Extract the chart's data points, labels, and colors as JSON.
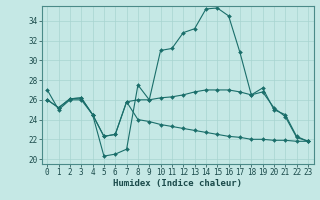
{
  "xlabel": "Humidex (Indice chaleur)",
  "bg_color": "#c5e8e5",
  "line_color": "#1a6e6a",
  "grid_color": "#a8d4d0",
  "xlim": [
    -0.5,
    23.5
  ],
  "ylim": [
    19.5,
    35.5
  ],
  "yticks": [
    20,
    22,
    24,
    26,
    28,
    30,
    32,
    34
  ],
  "xticks": [
    0,
    1,
    2,
    3,
    4,
    5,
    6,
    7,
    8,
    9,
    10,
    11,
    12,
    13,
    14,
    15,
    16,
    17,
    18,
    19,
    20,
    21,
    22,
    23
  ],
  "line1_x": [
    0,
    1,
    2,
    3,
    4,
    5,
    6,
    7,
    8,
    9,
    10,
    11,
    12,
    13,
    14,
    15,
    16,
    17,
    18,
    19,
    20,
    21,
    22,
    23
  ],
  "line1_y": [
    27.0,
    25.0,
    26.0,
    26.0,
    24.5,
    20.3,
    20.5,
    21.0,
    27.5,
    26.0,
    31.0,
    31.2,
    32.8,
    33.2,
    35.2,
    35.3,
    34.5,
    30.8,
    26.5,
    26.8,
    25.2,
    24.3,
    22.2,
    21.8
  ],
  "line2_x": [
    0,
    1,
    2,
    3,
    4,
    5,
    6,
    7,
    8,
    9,
    10,
    11,
    12,
    13,
    14,
    15,
    16,
    17,
    18,
    19,
    20,
    21,
    22,
    23
  ],
  "line2_y": [
    26.0,
    25.2,
    26.1,
    26.2,
    24.5,
    22.3,
    22.5,
    25.8,
    26.0,
    26.0,
    26.2,
    26.3,
    26.5,
    26.8,
    27.0,
    27.0,
    27.0,
    26.8,
    26.5,
    27.2,
    25.0,
    24.5,
    22.3,
    21.8
  ],
  "line3_x": [
    0,
    1,
    2,
    3,
    4,
    5,
    6,
    7,
    8,
    9,
    10,
    11,
    12,
    13,
    14,
    15,
    16,
    17,
    18,
    19,
    20,
    21,
    22,
    23
  ],
  "line3_y": [
    26.0,
    25.2,
    26.1,
    26.2,
    24.5,
    22.3,
    22.5,
    25.8,
    24.0,
    23.8,
    23.5,
    23.3,
    23.1,
    22.9,
    22.7,
    22.5,
    22.3,
    22.2,
    22.0,
    22.0,
    21.9,
    21.9,
    21.8,
    21.8
  ],
  "marker": "D",
  "marker_size": 2.0,
  "linewidth": 0.8,
  "tick_fontsize": 5.5,
  "xlabel_fontsize": 6.5
}
